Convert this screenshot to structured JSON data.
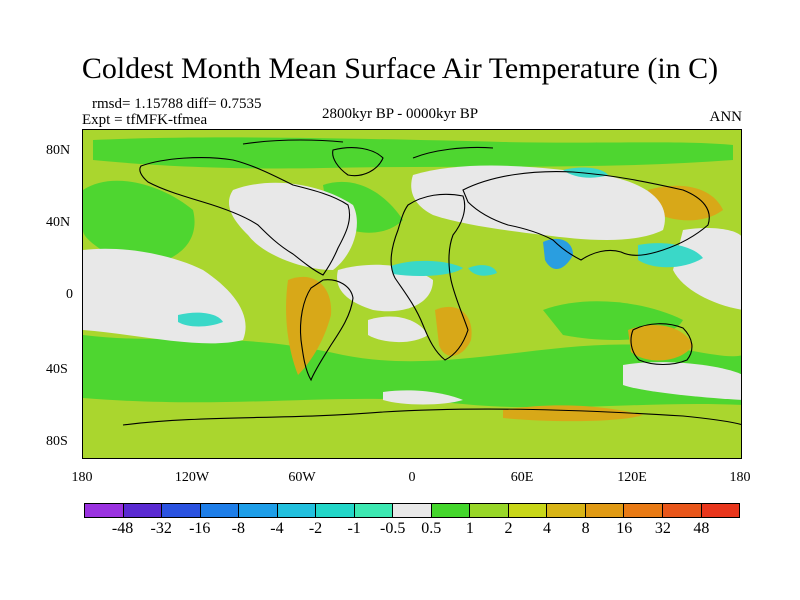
{
  "title": "Coldest Month Mean Surface Air Temperature (in C)",
  "stats": "rmsd= 1.15788 diff= 0.7535",
  "experiment": "Expt = tfMFK-tfmea",
  "period": "2800kyr BP - 0000kyr BP",
  "season": "ANN",
  "y_ticks": [
    "80N",
    "40N",
    "0",
    "40S",
    "80S"
  ],
  "x_ticks": [
    "180",
    "120W",
    "60W",
    "0",
    "60E",
    "120E",
    "180"
  ],
  "colorbar": {
    "labels": [
      "-48",
      "-32",
      "-16",
      "-8",
      "-4",
      "-2",
      "-1",
      "-0.5",
      "0.5",
      "1",
      "2",
      "4",
      "8",
      "16",
      "32",
      "48"
    ],
    "colors": [
      "#9a32e0",
      "#5a2ad2",
      "#2a52e0",
      "#1e7ee8",
      "#1e9ee8",
      "#22c0de",
      "#22d6c8",
      "#3ce8b2",
      "#e8e8e8",
      "#44d62c",
      "#98d628",
      "#c8d618",
      "#d8b416",
      "#e09a14",
      "#e87a14",
      "#e8561a",
      "#e8361c"
    ]
  },
  "palette": {
    "ocean": "#aad62e",
    "land": "#b8c820",
    "neutral": "#e8e8e8",
    "green": "#4ed630",
    "cyan": "#3ad8c8",
    "blue": "#2a9ee0",
    "orange": "#d8a818"
  }
}
